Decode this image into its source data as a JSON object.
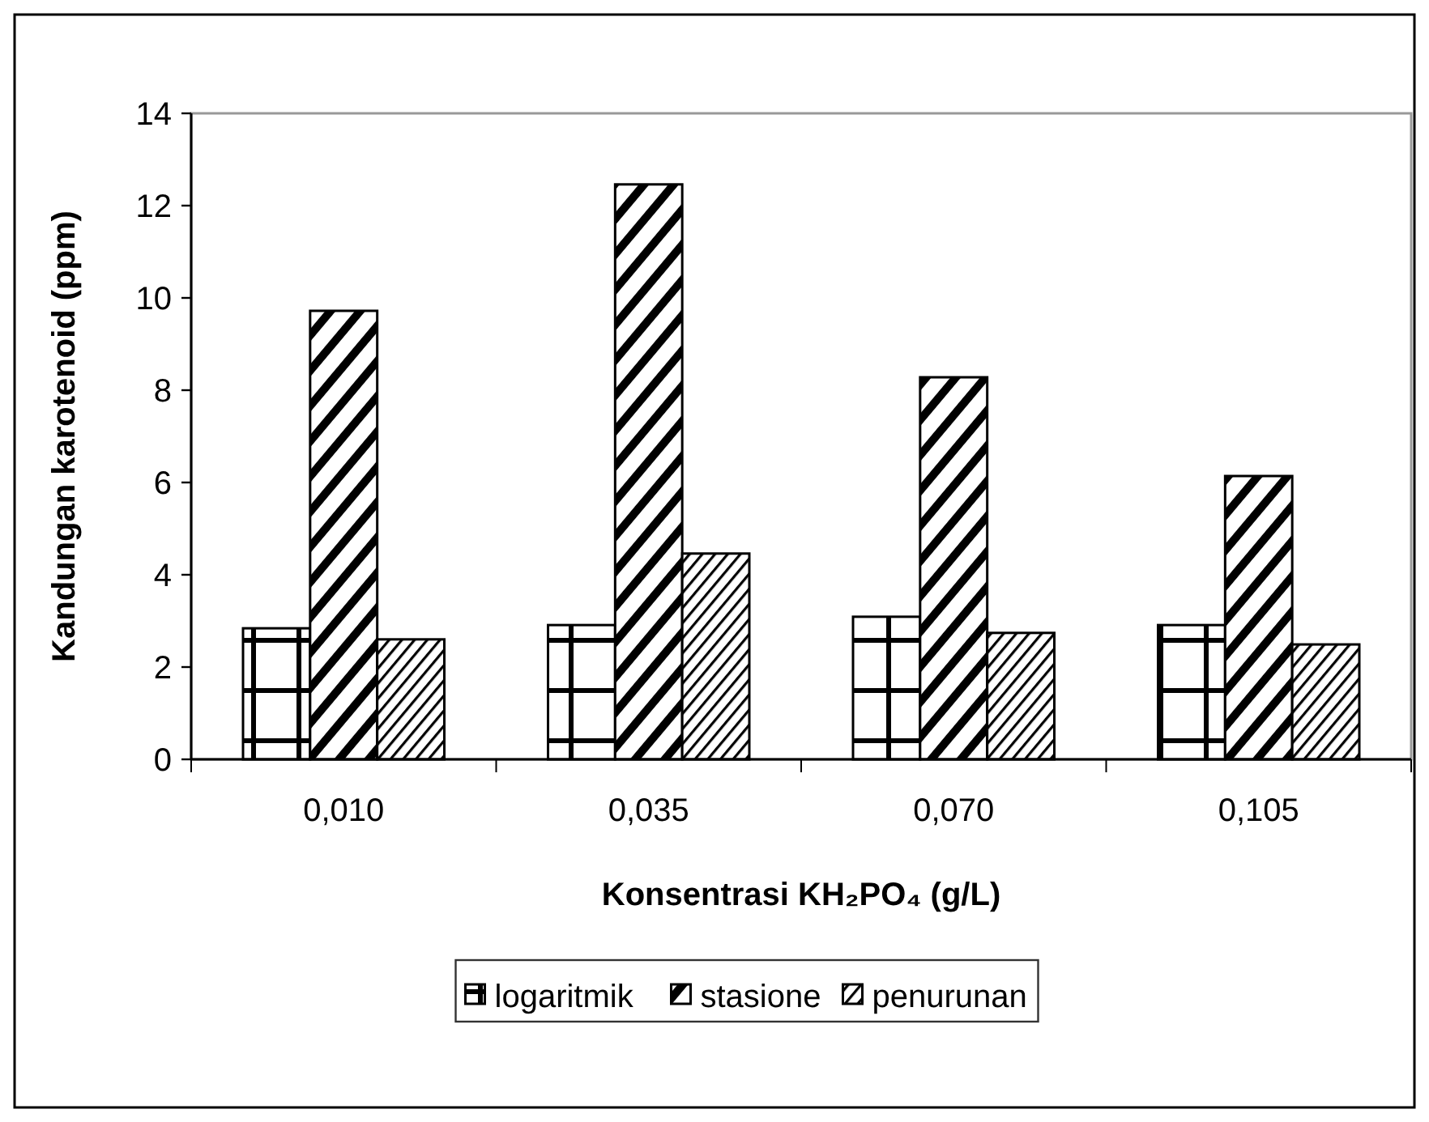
{
  "chart_data": {
    "type": "bar",
    "xlabel": "Konsentrasi KH₂PO₄ (g/L)",
    "ylabel": "Kandungan karotenoid (ppm)",
    "categories": [
      "0,010",
      "0,035",
      "0,070",
      "0,105"
    ],
    "series": [
      {
        "name": "logaritmik",
        "color": "#000000",
        "values": [
          2.84,
          2.91,
          3.09,
          2.91
        ]
      },
      {
        "name": "stasione",
        "color": "#000000",
        "values": [
          9.72,
          12.46,
          8.28,
          6.14
        ]
      },
      {
        "name": "penurunan",
        "color": "#000000",
        "values": [
          2.6,
          4.46,
          2.74,
          2.49
        ]
      }
    ],
    "ylim": [
      0,
      14
    ],
    "yticks": [
      0,
      2,
      4,
      6,
      8,
      10,
      12,
      14
    ],
    "grid": false,
    "legend": "bottom"
  }
}
